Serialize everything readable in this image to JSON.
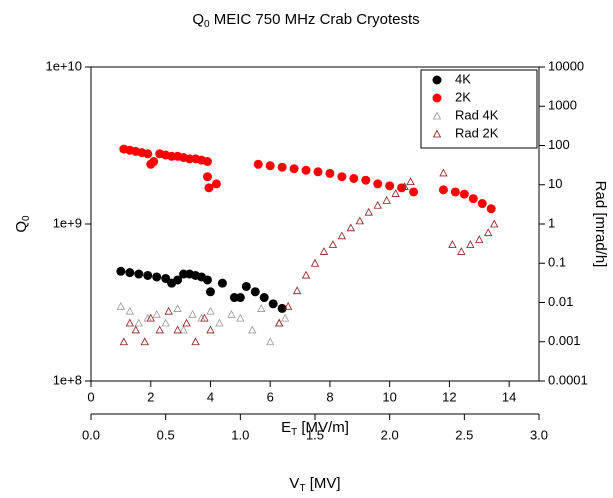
{
  "chart_data": {
    "type": "scatter",
    "title": {
      "main": "Q",
      "sub": "0",
      "rest": " MEIC 750 MHz Crab Cryotests"
    },
    "xlabel": {
      "main": "E",
      "sub": "T",
      "rest": " [MV/m]"
    },
    "ylabel": {
      "main": "Q",
      "sub": "0"
    },
    "y2label": "Rad [mrad/h]",
    "x2label": {
      "main": "V",
      "sub": "T",
      "rest": " [MV]"
    },
    "xlim": [
      0,
      15
    ],
    "xticks": [
      0,
      2,
      4,
      6,
      8,
      10,
      12,
      14
    ],
    "ylim": [
      100000000,
      10000000000
    ],
    "ylog": true,
    "yticks": [
      {
        "value": 100000000,
        "label": "1e+8"
      },
      {
        "value": 1000000000,
        "label": "1e+9"
      },
      {
        "value": 10000000000,
        "label": "1e+10"
      }
    ],
    "y2lim": [
      0.0001,
      10000
    ],
    "y2log": true,
    "y2ticks": [
      0.0001,
      0.001,
      0.01,
      0.1,
      1,
      10,
      100,
      1000,
      10000
    ],
    "x2lim": [
      0,
      3
    ],
    "x2ticks": [
      {
        "value": 0,
        "label": "0.0"
      },
      {
        "value": 0.5,
        "label": "0.5"
      },
      {
        "value": 1,
        "label": "1.0"
      },
      {
        "value": 1.5,
        "label": "1.5"
      },
      {
        "value": 2,
        "label": "2.0"
      },
      {
        "value": 2.5,
        "label": "2.5"
      },
      {
        "value": 3,
        "label": "3.0"
      }
    ],
    "legend": "upper right",
    "series": [
      {
        "name": "4K",
        "color": "#000000",
        "marker": "circle",
        "x": [
          1.0,
          1.3,
          1.6,
          1.9,
          2.2,
          2.5,
          2.7,
          2.9,
          3.1,
          3.3,
          3.5,
          3.7,
          3.9,
          4.0,
          4.4,
          4.8,
          5.0,
          5.2,
          5.5,
          5.8,
          6.1,
          6.4
        ],
        "values": [
          500000000,
          490000000,
          480000000,
          470000000,
          460000000,
          450000000,
          420000000,
          440000000,
          480000000,
          480000000,
          470000000,
          460000000,
          440000000,
          370000000,
          420000000,
          340000000,
          340000000,
          400000000,
          370000000,
          340000000,
          310000000,
          290000000
        ]
      },
      {
        "name": "2K",
        "color": "#ff0000",
        "marker": "circle",
        "x": [
          1.1,
          1.3,
          1.5,
          1.7,
          1.9,
          2.0,
          2.1,
          2.3,
          2.5,
          2.7,
          2.9,
          3.1,
          3.3,
          3.5,
          3.7,
          3.9,
          3.9,
          3.95,
          4.2,
          5.6,
          6.0,
          6.4,
          6.8,
          7.2,
          7.6,
          8.0,
          8.4,
          8.8,
          9.2,
          9.6,
          10.0,
          10.4,
          10.8,
          11.8,
          12.2,
          12.5,
          12.8,
          13.1,
          13.4
        ],
        "values": [
          3000000000,
          2950000000,
          2900000000,
          2850000000,
          2800000000,
          2400000000,
          2500000000,
          2800000000,
          2750000000,
          2700000000,
          2700000000,
          2650000000,
          2600000000,
          2600000000,
          2550000000,
          2500000000,
          2000000000,
          1700000000,
          1800000000,
          2400000000,
          2350000000,
          2300000000,
          2250000000,
          2200000000,
          2150000000,
          2100000000,
          2000000000,
          1950000000,
          1900000000,
          1800000000,
          1750000000,
          1700000000,
          1600000000,
          1650000000,
          1600000000,
          1550000000,
          1450000000,
          1350000000,
          1250000000
        ]
      },
      {
        "name": "Rad 4K",
        "color": "#999999",
        "marker": "triangle",
        "axis": "y2",
        "x": [
          1.0,
          1.3,
          1.6,
          1.9,
          2.2,
          2.5,
          2.9,
          3.1,
          3.4,
          3.7,
          4.0,
          4.3,
          4.7,
          5.0,
          5.4,
          5.7,
          6.0,
          6.3,
          6.5
        ],
        "values": [
          0.008,
          0.006,
          0.003,
          0.004,
          0.005,
          0.003,
          0.007,
          0.002,
          0.005,
          0.004,
          0.006,
          0.003,
          0.005,
          0.004,
          0.002,
          0.007,
          0.001,
          0.003,
          0.004
        ]
      },
      {
        "name": "Rad 2K",
        "color": "#8b1a1a",
        "marker": "triangle",
        "axis": "y2",
        "x": [
          1.1,
          1.3,
          1.5,
          1.8,
          2.0,
          2.3,
          2.6,
          2.9,
          3.2,
          3.5,
          3.8,
          4.0,
          6.3,
          6.6,
          6.9,
          7.2,
          7.5,
          7.8,
          8.1,
          8.4,
          8.7,
          9.0,
          9.3,
          9.6,
          9.9,
          10.2,
          10.5,
          10.7,
          11.8,
          12.1,
          12.4,
          12.7,
          13.0,
          13.3,
          13.5
        ],
        "values": [
          0.001,
          0.003,
          0.002,
          0.001,
          0.004,
          0.002,
          0.006,
          0.002,
          0.003,
          0.001,
          0.004,
          0.002,
          0.003,
          0.008,
          0.02,
          0.05,
          0.1,
          0.2,
          0.3,
          0.5,
          0.8,
          1.2,
          2,
          3,
          4,
          6,
          9,
          12,
          20,
          0.3,
          0.2,
          0.3,
          0.4,
          0.6,
          1
        ]
      }
    ]
  }
}
